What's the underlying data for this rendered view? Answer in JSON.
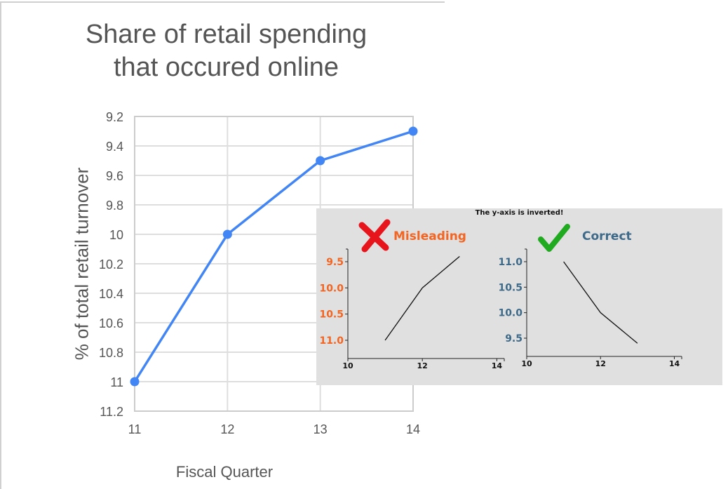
{
  "chart_data": [
    {
      "type": "line",
      "title": [
        "Share of retail spending",
        "that occured online"
      ],
      "xlabel": "Fiscal Quarter",
      "ylabel": "% of total retail turnover",
      "x": [
        11,
        12,
        13,
        14
      ],
      "y": [
        11,
        10,
        9.5,
        9.3
      ],
      "xticks": [
        "11",
        "12",
        "13",
        "14"
      ],
      "yticks": [
        "9.2",
        "9.4",
        "9.6",
        "9.8",
        "10",
        "10.2",
        "10.4",
        "10.6",
        "10.8",
        "11",
        "11.2"
      ],
      "xlim": [
        11,
        14
      ],
      "ylim": [
        9.2,
        11.2
      ],
      "y_inverted": true,
      "grid": true,
      "line_color": "#4285f4"
    },
    {
      "type": "line",
      "title": "The y-axis is inverted!",
      "panels": [
        {
          "label": "Misleading",
          "icon": "red-cross-icon",
          "label_color": "#f26522",
          "x": [
            11,
            12,
            13
          ],
          "y": [
            11.0,
            10.0,
            9.4
          ],
          "xticks": [
            "10",
            "12",
            "14"
          ],
          "yticks": [
            "9.5",
            "10.0",
            "10.5",
            "11.0"
          ],
          "y_inverted": true
        },
        {
          "label": "Correct",
          "icon": "green-check-icon",
          "label_color": "#3e6a8a",
          "x": [
            11,
            12,
            13
          ],
          "y": [
            11.0,
            10.0,
            9.4
          ],
          "xticks": [
            "10",
            "12",
            "14"
          ],
          "yticks": [
            "9.5",
            "10.0",
            "10.5",
            "11.0"
          ],
          "y_inverted": false
        }
      ]
    }
  ]
}
